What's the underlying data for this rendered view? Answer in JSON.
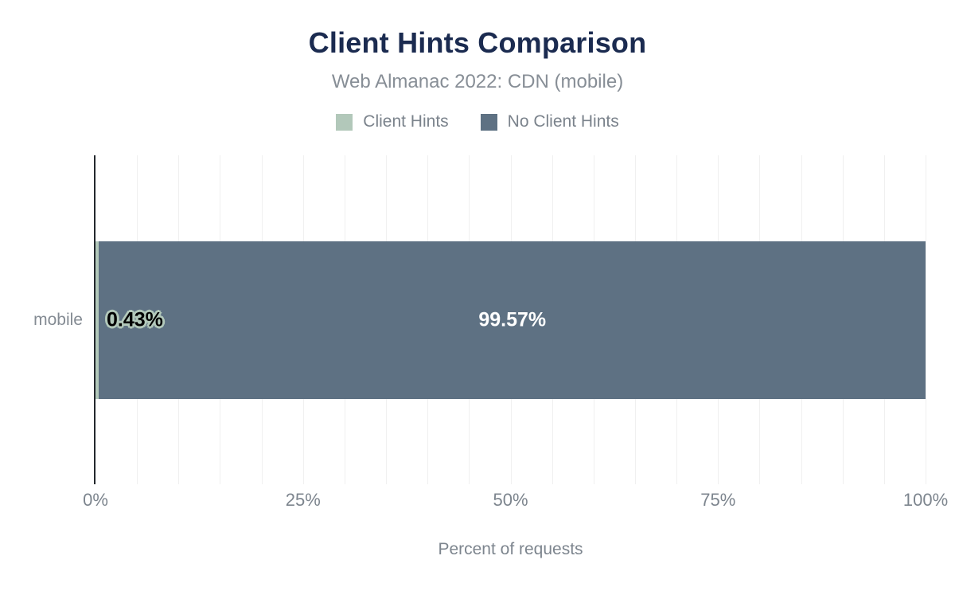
{
  "chart_data": {
    "type": "bar",
    "orientation": "horizontal",
    "stacked": true,
    "title": "Client Hints Comparison",
    "subtitle": "Web Almanac 2022: CDN (mobile)",
    "xlabel": "Percent of requests",
    "categories": [
      "mobile"
    ],
    "series": [
      {
        "name": "Client Hints",
        "color": "#b2c8ba",
        "values": [
          0.43
        ],
        "data_labels": [
          "0.43%"
        ],
        "label_color": "#000000",
        "label_halo": "#b2c8ba"
      },
      {
        "name": "No Client Hints",
        "color": "#5e7183",
        "values": [
          99.57
        ],
        "data_labels": [
          "99.57%"
        ],
        "label_color": "#ffffff",
        "label_halo": ""
      }
    ],
    "xlim": [
      0,
      100
    ],
    "x_ticks": [
      {
        "value": 0,
        "label": "0%"
      },
      {
        "value": 25,
        "label": "25%"
      },
      {
        "value": 50,
        "label": "50%"
      },
      {
        "value": 75,
        "label": "75%"
      },
      {
        "value": 100,
        "label": "100%"
      }
    ],
    "gridline_step_percent": 5,
    "grid": true,
    "legend_position": "top"
  },
  "colors": {
    "background": "#ffffff",
    "title": "#1b2b50",
    "subtitle": "#878e96",
    "axis_text": "#7d858e",
    "category_text": "#848b93",
    "axis_line": "#23282d",
    "gridline": "#f0f0f0"
  }
}
